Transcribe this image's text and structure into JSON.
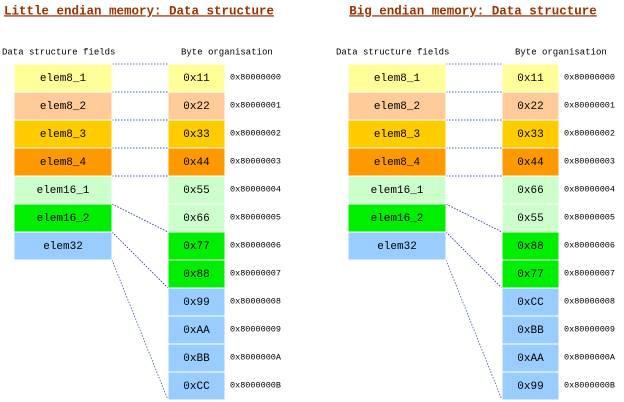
{
  "panels": [
    {
      "title": "Little endian memory: Data structure",
      "headers": {
        "fields": "Data structure fields",
        "bytes": "Byte organisation"
      },
      "fields": [
        "elem8_1",
        "elem8_2",
        "elem8_3",
        "elem8_4",
        "elem16_1",
        "elem16_2",
        "elem32"
      ],
      "bytes": [
        {
          "value": "0x11",
          "address": "0x80000000"
        },
        {
          "value": "0x22",
          "address": "0x80000001"
        },
        {
          "value": "0x33",
          "address": "0x80000002"
        },
        {
          "value": "0x44",
          "address": "0x80000003"
        },
        {
          "value": "0x55",
          "address": "0x80000004"
        },
        {
          "value": "0x66",
          "address": "0x80000005"
        },
        {
          "value": "0x77",
          "address": "0x80000006"
        },
        {
          "value": "0x88",
          "address": "0x80000007"
        },
        {
          "value": "0x99",
          "address": "0x80000008"
        },
        {
          "value": "0xAA",
          "address": "0x80000009"
        },
        {
          "value": "0xBB",
          "address": "0x8000000A"
        },
        {
          "value": "0xCC",
          "address": "0x8000000B"
        }
      ]
    },
    {
      "title": "Big endian memory: Data structure",
      "headers": {
        "fields": "Data structure fields",
        "bytes": "Byte organisation"
      },
      "fields": [
        "elem8_1",
        "elem8_2",
        "elem8_3",
        "elem8_4",
        "elem16_1",
        "elem16_2",
        "elem32"
      ],
      "bytes": [
        {
          "value": "0x11",
          "address": "0x80000000"
        },
        {
          "value": "0x22",
          "address": "0x80000001"
        },
        {
          "value": "0x33",
          "address": "0x80000002"
        },
        {
          "value": "0x44",
          "address": "0x80000003"
        },
        {
          "value": "0x66",
          "address": "0x80000004"
        },
        {
          "value": "0x55",
          "address": "0x80000005"
        },
        {
          "value": "0x88",
          "address": "0x80000006"
        },
        {
          "value": "0x77",
          "address": "0x80000007"
        },
        {
          "value": "0xCC",
          "address": "0x80000008"
        },
        {
          "value": "0xBB",
          "address": "0x80000009"
        },
        {
          "value": "0xAA",
          "address": "0x8000000A"
        },
        {
          "value": "0x99",
          "address": "0x8000000B"
        }
      ]
    }
  ]
}
